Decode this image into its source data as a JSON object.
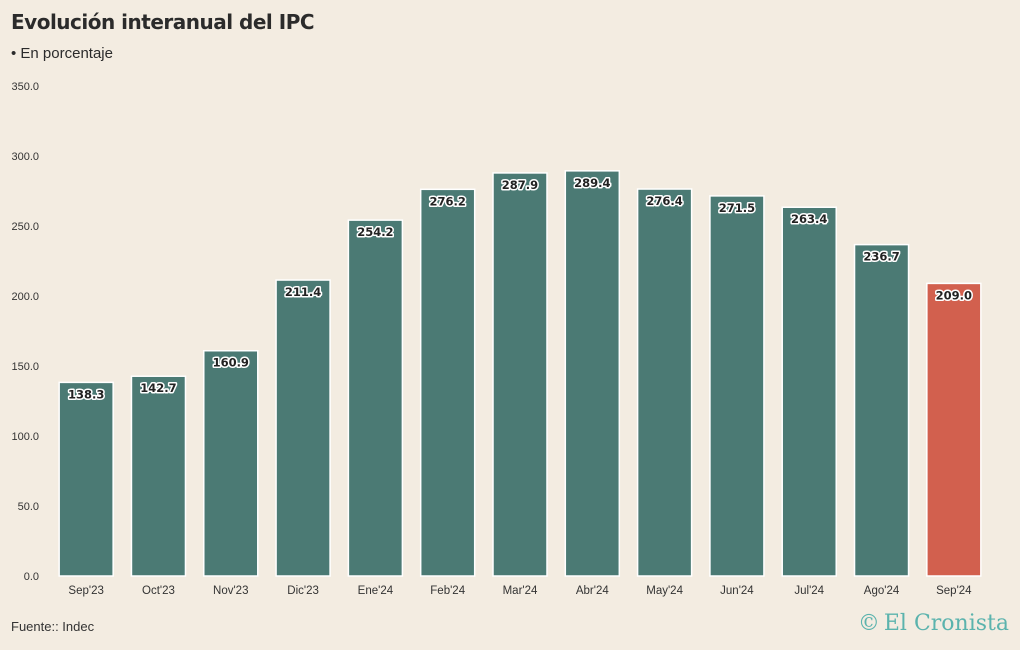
{
  "header": {
    "title": "Evolución interanual del IPC",
    "subtitle": "• En porcentaje"
  },
  "footer": {
    "source": "Fuente:: Indec",
    "brand_mark": "©",
    "brand_name": "El Cronista"
  },
  "colors": {
    "background": "#f3ece1",
    "bar": "#4b7a74",
    "highlight_bar": "#d2604e",
    "brand": "#5bb3ad"
  },
  "chart_data": {
    "type": "bar",
    "title": "Evolución interanual del IPC",
    "subtitle": "• En porcentaje",
    "xlabel": "",
    "ylabel": "",
    "ylim": [
      0,
      350
    ],
    "yticks": [
      "0.0",
      "50.0",
      "100.0",
      "150.0",
      "200.0",
      "250.0",
      "300.0",
      "350.0"
    ],
    "categories": [
      "Sep'23",
      "Oct'23",
      "Nov'23",
      "Dic'23",
      "Ene'24",
      "Feb'24",
      "Mar'24",
      "Abr'24",
      "May'24",
      "Jun'24",
      "Jul'24",
      "Ago'24",
      "Sep'24"
    ],
    "values": [
      138.3,
      142.7,
      160.9,
      211.4,
      254.2,
      276.2,
      287.9,
      289.4,
      276.4,
      271.5,
      263.4,
      236.7,
      209.0
    ],
    "labels": [
      "138.3",
      "142.7",
      "160.9",
      "211.4",
      "254.2",
      "276.2",
      "287.9",
      "289.4",
      "276.4",
      "271.5",
      "263.4",
      "236.7",
      "209.0"
    ],
    "highlight_index": 12,
    "grid": false,
    "legend": "none"
  }
}
